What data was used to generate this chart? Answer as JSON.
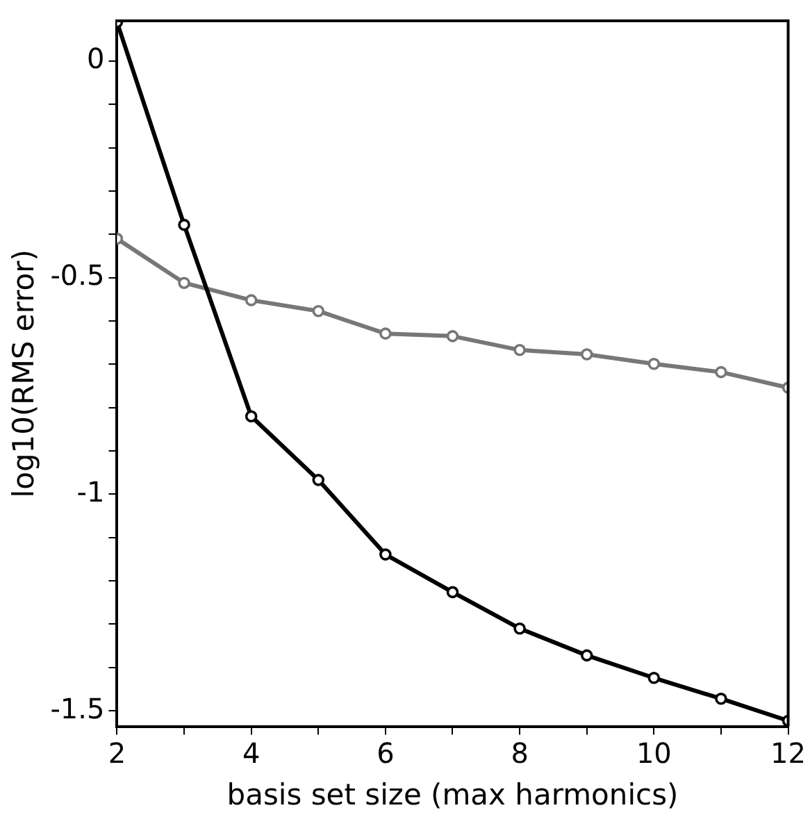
{
  "chart_data": {
    "type": "line",
    "xlabel": "basis set size (max harmonics)",
    "ylabel": "log10(RMS error)",
    "x": [
      2,
      3,
      4,
      5,
      6,
      7,
      8,
      9,
      10,
      11,
      12
    ],
    "series": [
      {
        "color": "#000000",
        "values": [
          0.09,
          -0.378,
          -0.82,
          -0.967,
          -1.139,
          -1.226,
          -1.31,
          -1.372,
          -1.424,
          -1.472,
          -1.523
        ]
      },
      {
        "color": "#777777",
        "values": [
          -0.41,
          -0.512,
          -0.552,
          -0.577,
          -0.629,
          -0.635,
          -0.667,
          -0.677,
          -0.699,
          -0.718,
          -0.754
        ]
      }
    ],
    "xlim": [
      2,
      12
    ],
    "ylim": [
      -1.536,
      0.093
    ],
    "xticks": [
      2,
      {
        "value": 3,
        "label": null
      },
      4,
      {
        "value": 5,
        "label": null
      },
      6,
      {
        "value": 7,
        "label": null
      },
      8,
      {
        "value": 9,
        "label": null
      },
      10,
      {
        "value": 11,
        "label": null
      },
      12
    ],
    "yticks": [
      0,
      {
        "value": -0.1,
        "label": null
      },
      {
        "value": -0.2,
        "label": null
      },
      {
        "value": -0.3,
        "label": null
      },
      {
        "value": -0.4,
        "label": null
      },
      -0.5,
      {
        "value": -0.6,
        "label": null
      },
      {
        "value": -0.7,
        "label": null
      },
      {
        "value": -0.8,
        "label": null
      },
      {
        "value": -0.9,
        "label": null
      },
      -1,
      {
        "value": -1.1,
        "label": null
      },
      {
        "value": -1.2,
        "label": null
      },
      {
        "value": -1.3,
        "label": null
      },
      {
        "value": -1.4,
        "label": null
      },
      -1.5
    ],
    "grid": false,
    "legend": false,
    "marker": "circle",
    "line_style": "solid"
  }
}
